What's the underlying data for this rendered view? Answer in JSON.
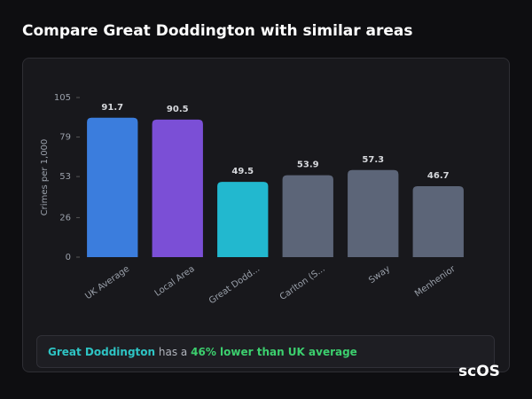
{
  "chart_data": {
    "type": "bar",
    "title": "Compare Great Doddington with similar areas",
    "y_label": "Crimes per 1,000",
    "categories": [
      "UK Average",
      "Local Area",
      "Great Dodd...",
      "Carlton (S...",
      "Sway",
      "Menhenior"
    ],
    "values": [
      91.7,
      90.5,
      49.5,
      53.9,
      57.3,
      46.7
    ],
    "colors": [
      "#3b7ddd",
      "#7b4fd6",
      "#22b8cf",
      "#5c6578",
      "#5c6578",
      "#5c6578"
    ],
    "ylim": [
      0,
      105
    ],
    "yticks": [
      0,
      26,
      53,
      79,
      105
    ]
  },
  "summary": {
    "area": "Great Doddington",
    "connector": "has a",
    "highlight": "46% lower than UK average"
  },
  "logo": "scOS"
}
